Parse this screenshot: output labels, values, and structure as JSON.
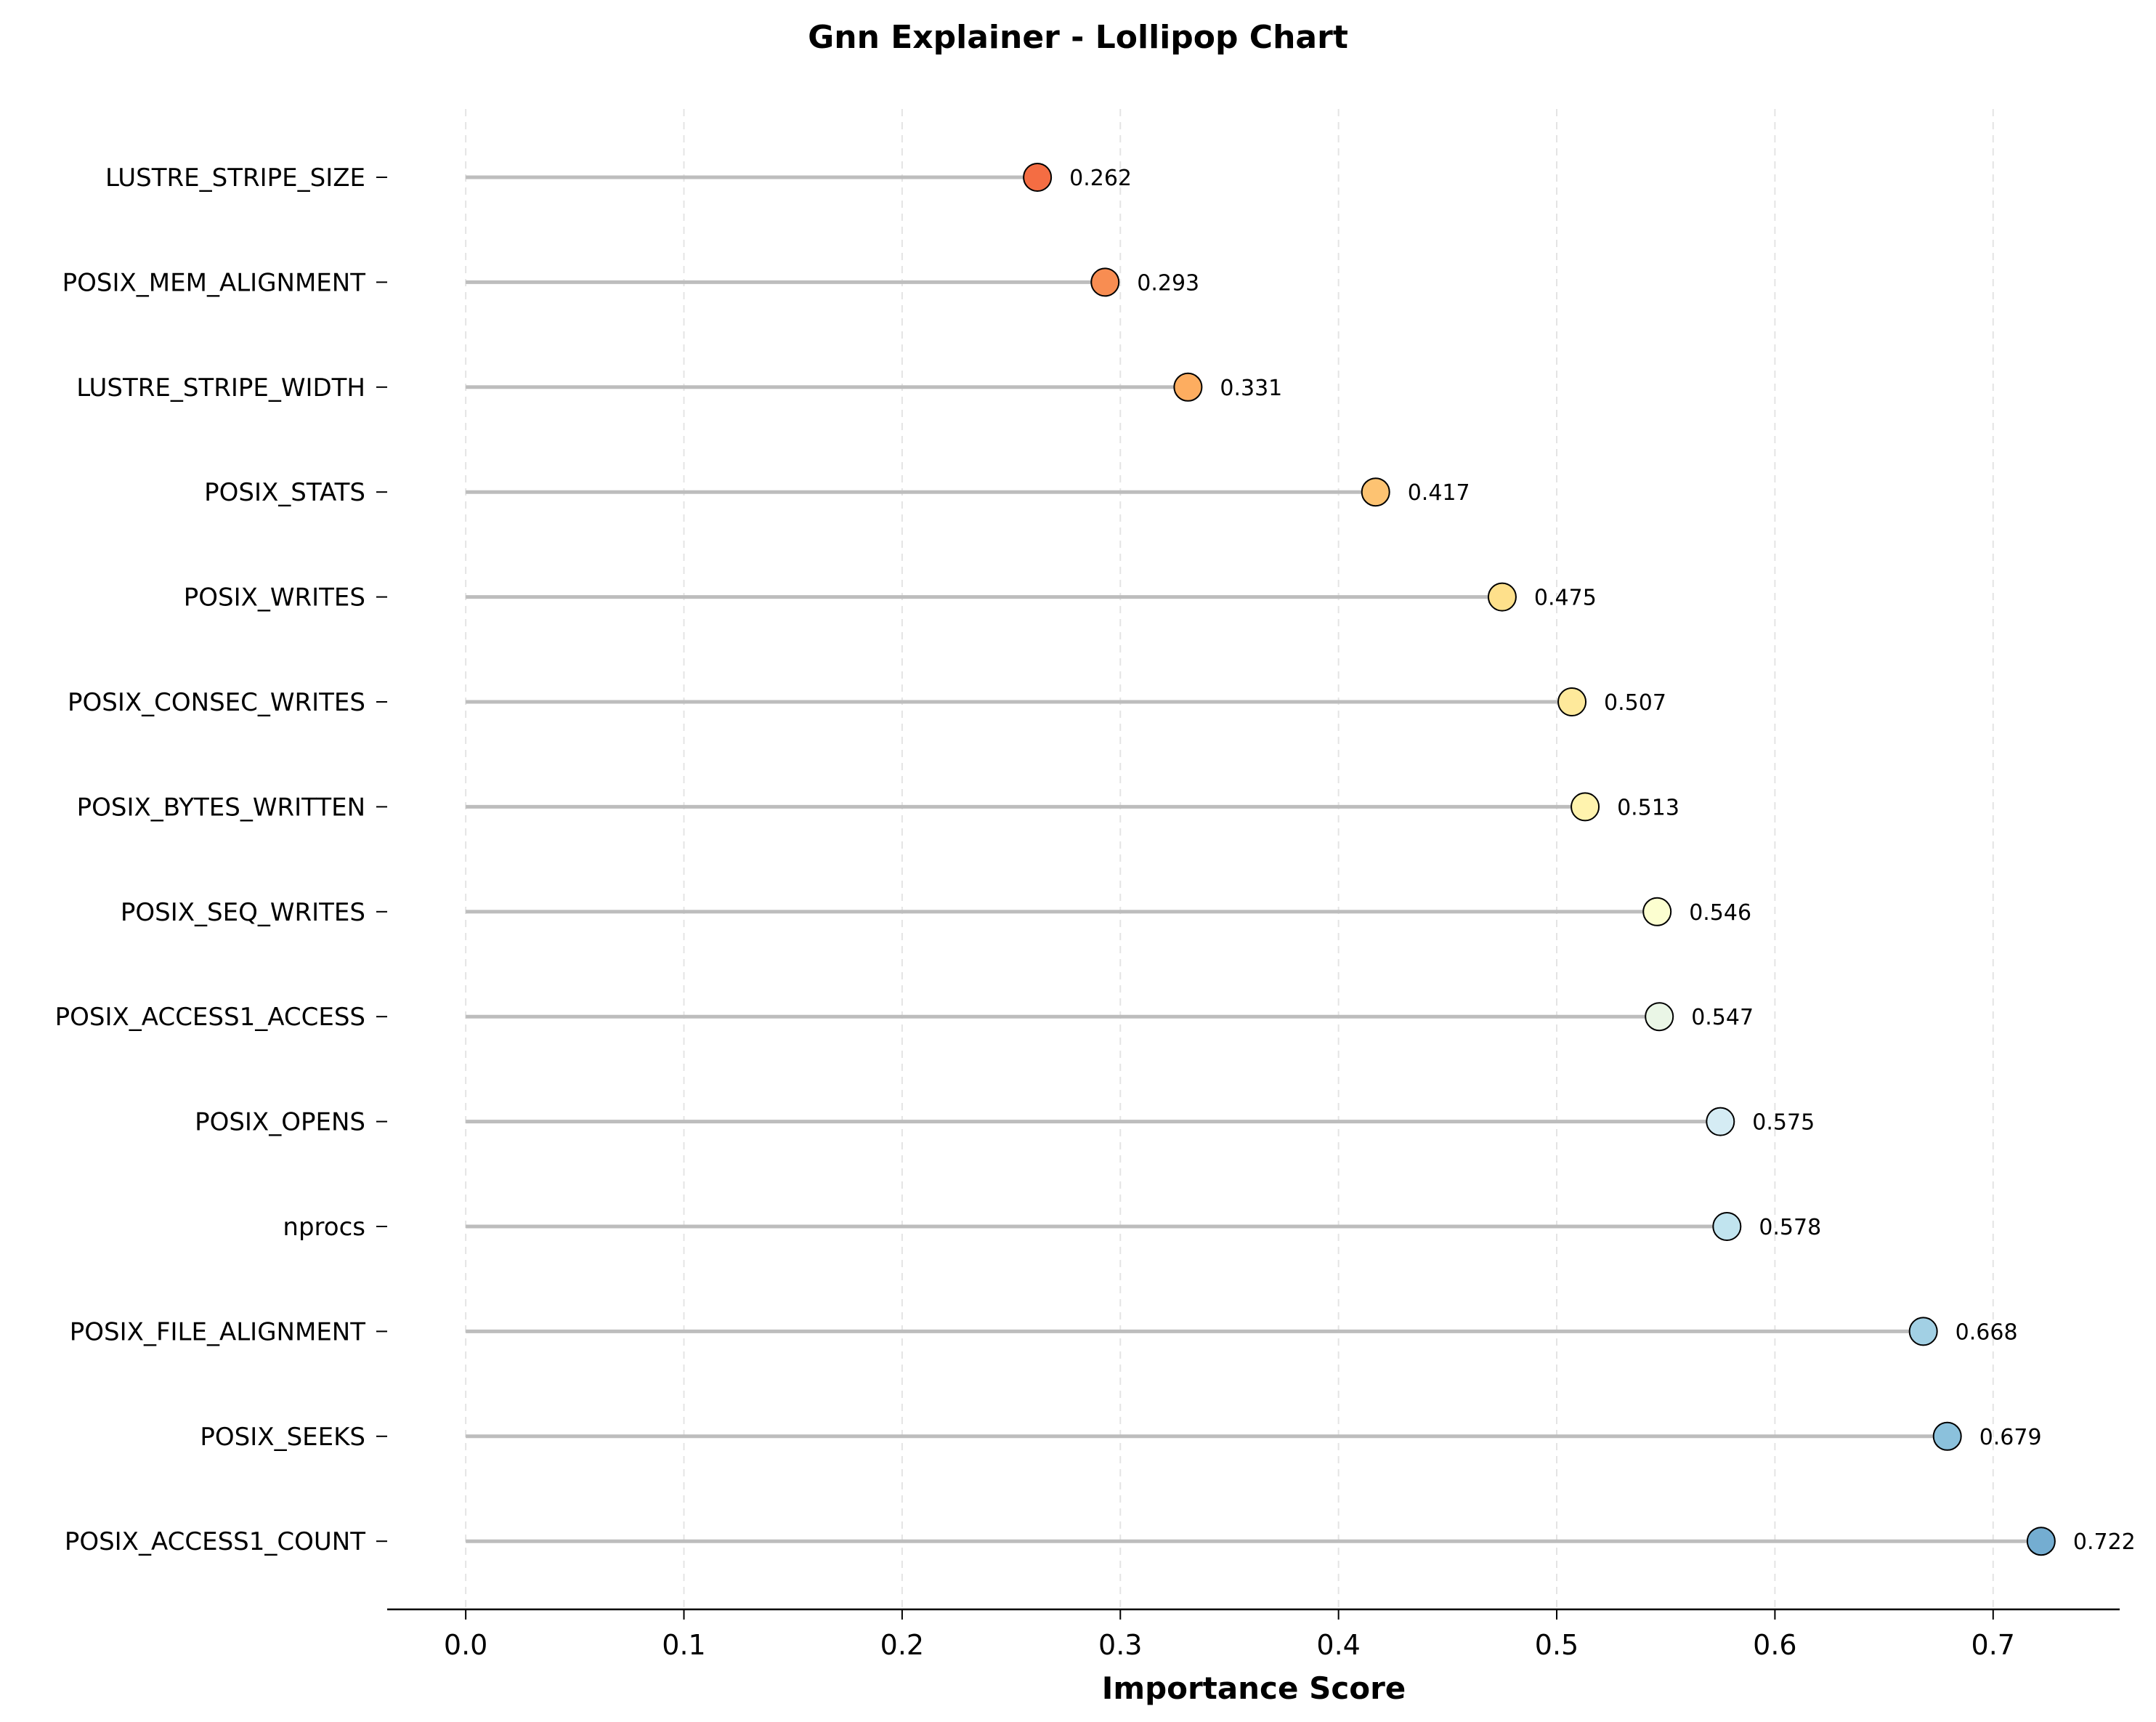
{
  "chart_data": {
    "type": "lollipop",
    "title": "Gnn Explainer - Lollipop Chart",
    "xlabel": "Importance Score",
    "ylabel": "",
    "xlim": [
      -0.036,
      0.758
    ],
    "xticks": [
      "0.0",
      "0.1",
      "0.2",
      "0.3",
      "0.4",
      "0.5",
      "0.6",
      "0.7"
    ],
    "grid": "x-dashed",
    "stem_color": "#bdbdbd",
    "categories": [
      "LUSTRE_STRIPE_SIZE",
      "POSIX_MEM_ALIGNMENT",
      "LUSTRE_STRIPE_WIDTH",
      "POSIX_STATS",
      "POSIX_WRITES",
      "POSIX_CONSEC_WRITES",
      "POSIX_BYTES_WRITTEN",
      "POSIX_SEQ_WRITES",
      "POSIX_ACCESS1_ACCESS",
      "POSIX_OPENS",
      "nprocs",
      "POSIX_FILE_ALIGNMENT",
      "POSIX_SEEKS",
      "POSIX_ACCESS1_COUNT"
    ],
    "values": [
      0.262,
      0.293,
      0.331,
      0.417,
      0.475,
      0.507,
      0.513,
      0.546,
      0.547,
      0.575,
      0.578,
      0.668,
      0.679,
      0.722
    ],
    "value_labels": [
      "0.262",
      "0.293",
      "0.331",
      "0.417",
      "0.475",
      "0.507",
      "0.513",
      "0.546",
      "0.547",
      "0.575",
      "0.578",
      "0.668",
      "0.679",
      "0.722"
    ],
    "colors": [
      "#f46d43",
      "#f88d52",
      "#fdad60",
      "#fdc372",
      "#fee08b",
      "#fee99b",
      "#fff3ae",
      "#fcfed0",
      "#eaf6e6",
      "#d5ecf4",
      "#c1e4ef",
      "#a2d0e4",
      "#8bc1dc",
      "#74add1"
    ]
  }
}
